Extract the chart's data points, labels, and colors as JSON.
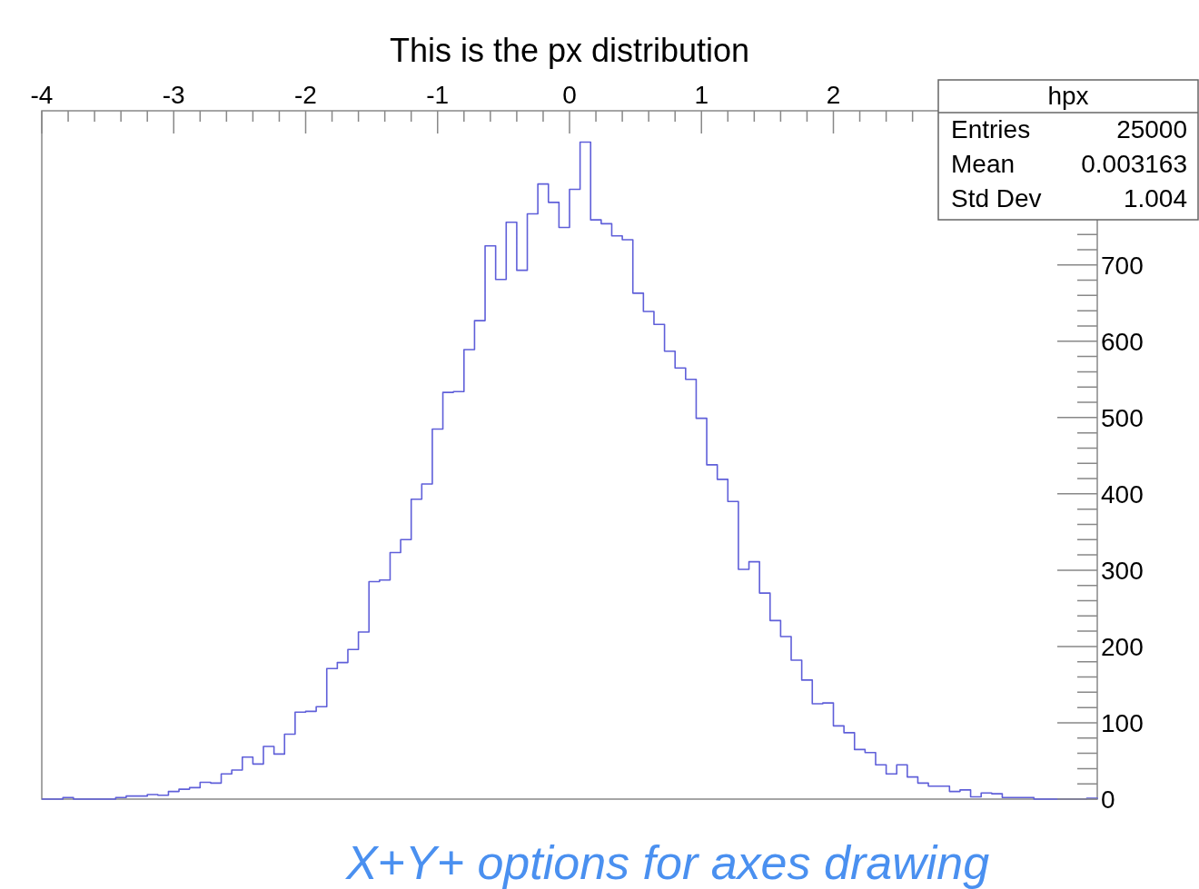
{
  "chart_data": {
    "type": "histogram",
    "title": "This is the px distribution",
    "bins": [
      -4,
      -3.92,
      -3.84,
      -3.76,
      -3.68,
      -3.6,
      -3.52,
      -3.44,
      -3.36,
      -3.28,
      -3.2,
      -3.12,
      -3.04,
      -2.96,
      -2.88,
      -2.8,
      -2.72,
      -2.64,
      -2.56,
      -2.48,
      -2.4,
      -2.32,
      -2.24,
      -2.16,
      -2.08,
      -2,
      -1.92,
      -1.84,
      -1.76,
      -1.68,
      -1.6,
      -1.52,
      -1.44,
      -1.36,
      -1.28,
      -1.2,
      -1.12,
      -1.04,
      -0.96,
      -0.88,
      -0.8,
      -0.72,
      -0.64,
      -0.56,
      -0.48,
      -0.4,
      -0.32,
      -0.24,
      -0.16,
      -0.08,
      0,
      0.08,
      0.16,
      0.24,
      0.32,
      0.4,
      0.48,
      0.56,
      0.64,
      0.72,
      0.8,
      0.88,
      0.96,
      1.04,
      1.12,
      1.2,
      1.28,
      1.36,
      1.44,
      1.52,
      1.6,
      1.68,
      1.76,
      1.84,
      1.92,
      2,
      2.08,
      2.16,
      2.24,
      2.32,
      2.4,
      2.48,
      2.56,
      2.64,
      2.72,
      2.8,
      2.88,
      2.96,
      3.04,
      3.12,
      3.2,
      3.28,
      3.36,
      3.44,
      3.52,
      3.6,
      3.68,
      3.76,
      3.84,
      3.92,
      4
    ],
    "values": [
      0,
      0,
      2,
      0,
      0,
      0,
      0,
      2,
      4,
      4,
      6,
      5,
      10,
      13,
      15,
      22,
      21,
      33,
      38,
      55,
      46,
      69,
      59,
      85,
      114,
      115,
      121,
      171,
      179,
      196,
      219,
      285,
      287,
      323,
      340,
      393,
      413,
      485,
      533,
      534,
      589,
      627,
      725,
      681,
      756,
      693,
      767,
      806,
      782,
      749,
      799,
      861,
      759,
      754,
      738,
      733,
      663,
      639,
      622,
      587,
      565,
      550,
      499,
      438,
      419,
      390,
      301,
      311,
      270,
      234,
      213,
      182,
      156,
      125,
      126,
      96,
      87,
      65,
      61,
      45,
      33,
      45,
      29,
      21,
      17,
      17,
      10,
      12,
      3,
      8,
      7,
      2,
      2,
      2,
      0,
      0,
      0,
      0,
      0,
      1
    ],
    "color": "#5f5fd9",
    "xlim": [
      -4,
      4
    ],
    "xticks": [
      -4,
      -3,
      -2,
      -1,
      0,
      1,
      2
    ],
    "ylim": [
      0,
      902
    ],
    "yticks": [
      0,
      100,
      200,
      300,
      400,
      500,
      600,
      700
    ],
    "grid": false,
    "annotations": [
      "hpx",
      "Entries",
      "25000",
      "Mean",
      "0.003163",
      "Std Dev",
      "1.004",
      "X+Y+ options for axes drawing"
    ]
  }
}
